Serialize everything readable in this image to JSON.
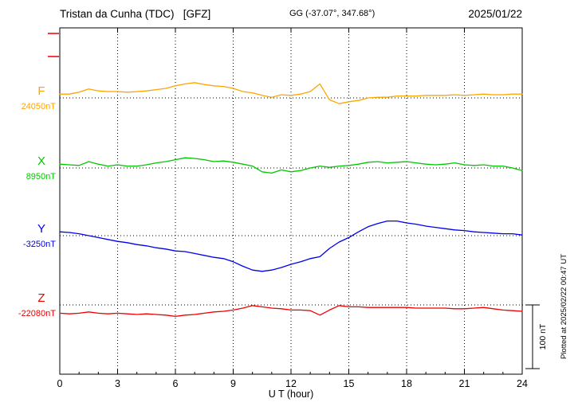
{
  "header": {
    "title": "Tristan da Cunha (TDC)   [GFZ]",
    "coords": "GG (-37.07°, 347.68°)",
    "date": "2025/01/22"
  },
  "axis": {
    "xlabel": "U T (hour)",
    "xticks": [
      "0",
      "3",
      "6",
      "9",
      "12",
      "15",
      "18",
      "21",
      "24"
    ]
  },
  "scalebar": {
    "label": "100 nT",
    "span_nT": 100
  },
  "footer_note": "Plotted at 2025/02/22 00:47 UT",
  "chart_data": {
    "type": "line",
    "title": "Tristan da Cunha (TDC) [GFZ] magnetogram 2025/01/22",
    "xlabel": "U T (hour)",
    "x_range": [
      0,
      24
    ],
    "x_hours_step": 0.5,
    "grid": "dotted vertical every 3 h, dotted horizontal baseline per component",
    "series": [
      {
        "name": "F",
        "baseline_label": "24050nT",
        "baseline_nT": 24050,
        "color": "#FFA500",
        "offsets_nT": [
          6,
          6,
          9,
          14,
          11,
          10,
          10,
          9,
          10,
          11,
          13,
          15,
          19,
          22,
          24,
          21,
          19,
          18,
          15,
          10,
          8,
          4,
          1,
          5,
          4,
          6,
          10,
          22,
          -3,
          -9,
          -6,
          -4,
          0,
          1,
          1,
          3,
          3,
          3,
          4,
          4,
          4,
          5,
          4,
          5,
          6,
          5,
          5,
          6,
          6
        ]
      },
      {
        "name": "X",
        "baseline_label": "8950nT",
        "baseline_nT": 8950,
        "color": "#00C800",
        "offsets_nT": [
          6,
          5,
          4,
          10,
          6,
          3,
          5,
          3,
          3,
          5,
          8,
          10,
          13,
          16,
          15,
          13,
          10,
          11,
          9,
          6,
          3,
          -6,
          -8,
          -3,
          -6,
          -4,
          0,
          3,
          1,
          3,
          4,
          6,
          9,
          10,
          8,
          9,
          10,
          8,
          6,
          5,
          6,
          8,
          5,
          4,
          5,
          3,
          3,
          0,
          -4
        ]
      },
      {
        "name": "Y",
        "baseline_label": "-3250nT",
        "baseline_nT": -3250,
        "color": "#0000EE",
        "offsets_nT": [
          6,
          5,
          3,
          0,
          -3,
          -6,
          -9,
          -11,
          -14,
          -16,
          -19,
          -21,
          -24,
          -25,
          -28,
          -31,
          -34,
          -36,
          -41,
          -48,
          -54,
          -56,
          -54,
          -50,
          -45,
          -41,
          -36,
          -33,
          -20,
          -10,
          -3,
          6,
          14,
          19,
          23,
          23,
          20,
          18,
          15,
          13,
          11,
          9,
          8,
          6,
          5,
          4,
          3,
          3,
          1
        ]
      },
      {
        "name": "Z",
        "baseline_label": "-22080nT",
        "baseline_nT": -22080,
        "color": "#EE0000",
        "offsets_nT": [
          -13,
          -14,
          -13,
          -11,
          -13,
          -14,
          -13,
          -14,
          -15,
          -14,
          -15,
          -16,
          -18,
          -16,
          -15,
          -13,
          -11,
          -10,
          -8,
          -5,
          -1,
          -3,
          -5,
          -6,
          -8,
          -8,
          -9,
          -16,
          -8,
          -1,
          -3,
          -3,
          -4,
          -4,
          -4,
          -4,
          -4,
          -5,
          -5,
          -5,
          -5,
          -6,
          -6,
          -5,
          -4,
          -6,
          -8,
          -9,
          -10
        ]
      }
    ]
  }
}
